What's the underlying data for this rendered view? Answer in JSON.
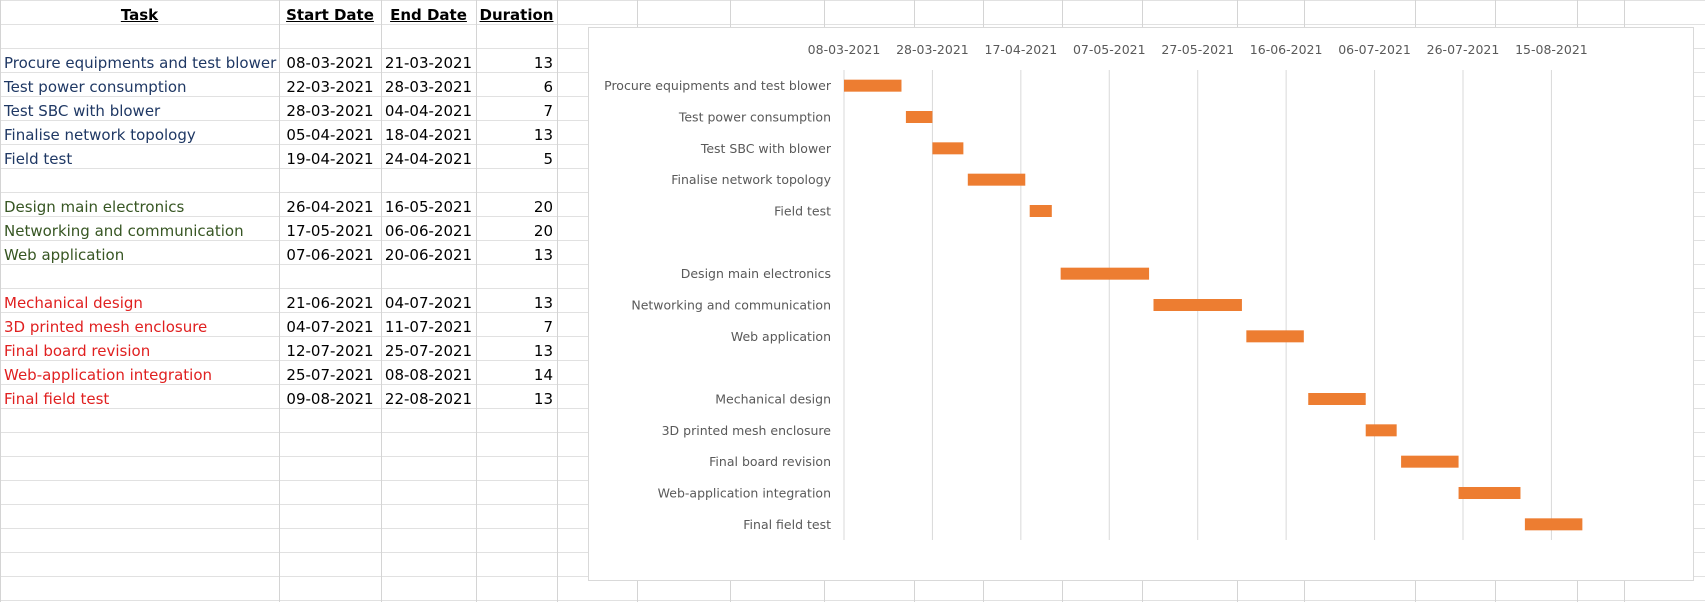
{
  "table": {
    "headers": {
      "task": "Task",
      "start": "Start Date",
      "end": "End Date",
      "duration": "Duration"
    },
    "groups": [
      {
        "color": "#1f3864",
        "rows": [
          {
            "task": "Procure equipments and test blower",
            "start": "08-03-2021",
            "end": "21-03-2021",
            "duration": "13"
          },
          {
            "task": "Test power consumption",
            "start": "22-03-2021",
            "end": "28-03-2021",
            "duration": "6"
          },
          {
            "task": "Test SBC with blower",
            "start": "28-03-2021",
            "end": "04-04-2021",
            "duration": "7"
          },
          {
            "task": "Finalise network topology",
            "start": "05-04-2021",
            "end": "18-04-2021",
            "duration": "13"
          },
          {
            "task": "Field test",
            "start": "19-04-2021",
            "end": "24-04-2021",
            "duration": "5"
          }
        ]
      },
      {
        "color": "#375623",
        "rows": [
          {
            "task": "Design main electronics",
            "start": "26-04-2021",
            "end": "16-05-2021",
            "duration": "20"
          },
          {
            "task": "Networking and communication",
            "start": "17-05-2021",
            "end": "06-06-2021",
            "duration": "20"
          },
          {
            "task": "Web application",
            "start": "07-06-2021",
            "end": "20-06-2021",
            "duration": "13"
          }
        ]
      },
      {
        "color": "#e02020",
        "rows": [
          {
            "task": "Mechanical design",
            "start": "21-06-2021",
            "end": "04-07-2021",
            "duration": "13"
          },
          {
            "task": "3D printed mesh enclosure",
            "start": "04-07-2021",
            "end": "11-07-2021",
            "duration": "7"
          },
          {
            "task": "Final board revision",
            "start": "12-07-2021",
            "end": "25-07-2021",
            "duration": "13"
          },
          {
            "task": "Web-application integration",
            "start": "25-07-2021",
            "end": "08-08-2021",
            "duration": "14"
          },
          {
            "task": "Final field test",
            "start": "09-08-2021",
            "end": "22-08-2021",
            "duration": "13"
          }
        ]
      }
    ]
  },
  "chart_data": {
    "type": "bar",
    "orientation": "horizontal-gantt",
    "bar_color": "#ed7d31",
    "gridline_color": "#d9d9d9",
    "xlim": [
      "08-03-2021",
      "22-08-2021"
    ],
    "x_ticks": [
      "08-03-2021",
      "28-03-2021",
      "17-04-2021",
      "07-05-2021",
      "27-05-2021",
      "16-06-2021",
      "06-07-2021",
      "26-07-2021",
      "15-08-2021"
    ],
    "categories": [
      "Procure equipments and test blower",
      "Test power consumption",
      "Test SBC with blower",
      "Finalise network topology",
      "Field test",
      "",
      "Design main electronics",
      "Networking and communication",
      "Web application",
      "",
      "Mechanical design",
      "3D printed mesh enclosure",
      "Final board revision",
      "Web-application integration",
      "Final field test"
    ],
    "series": [
      {
        "start": [
          "08-03-2021",
          "22-03-2021",
          "28-03-2021",
          "05-04-2021",
          "19-04-2021",
          null,
          "26-04-2021",
          "17-05-2021",
          "07-06-2021",
          null,
          "21-06-2021",
          "04-07-2021",
          "12-07-2021",
          "25-07-2021",
          "09-08-2021"
        ],
        "duration": [
          13,
          6,
          7,
          13,
          5,
          null,
          20,
          20,
          13,
          null,
          13,
          7,
          13,
          14,
          13
        ]
      }
    ],
    "legend": "none",
    "grid": true
  }
}
